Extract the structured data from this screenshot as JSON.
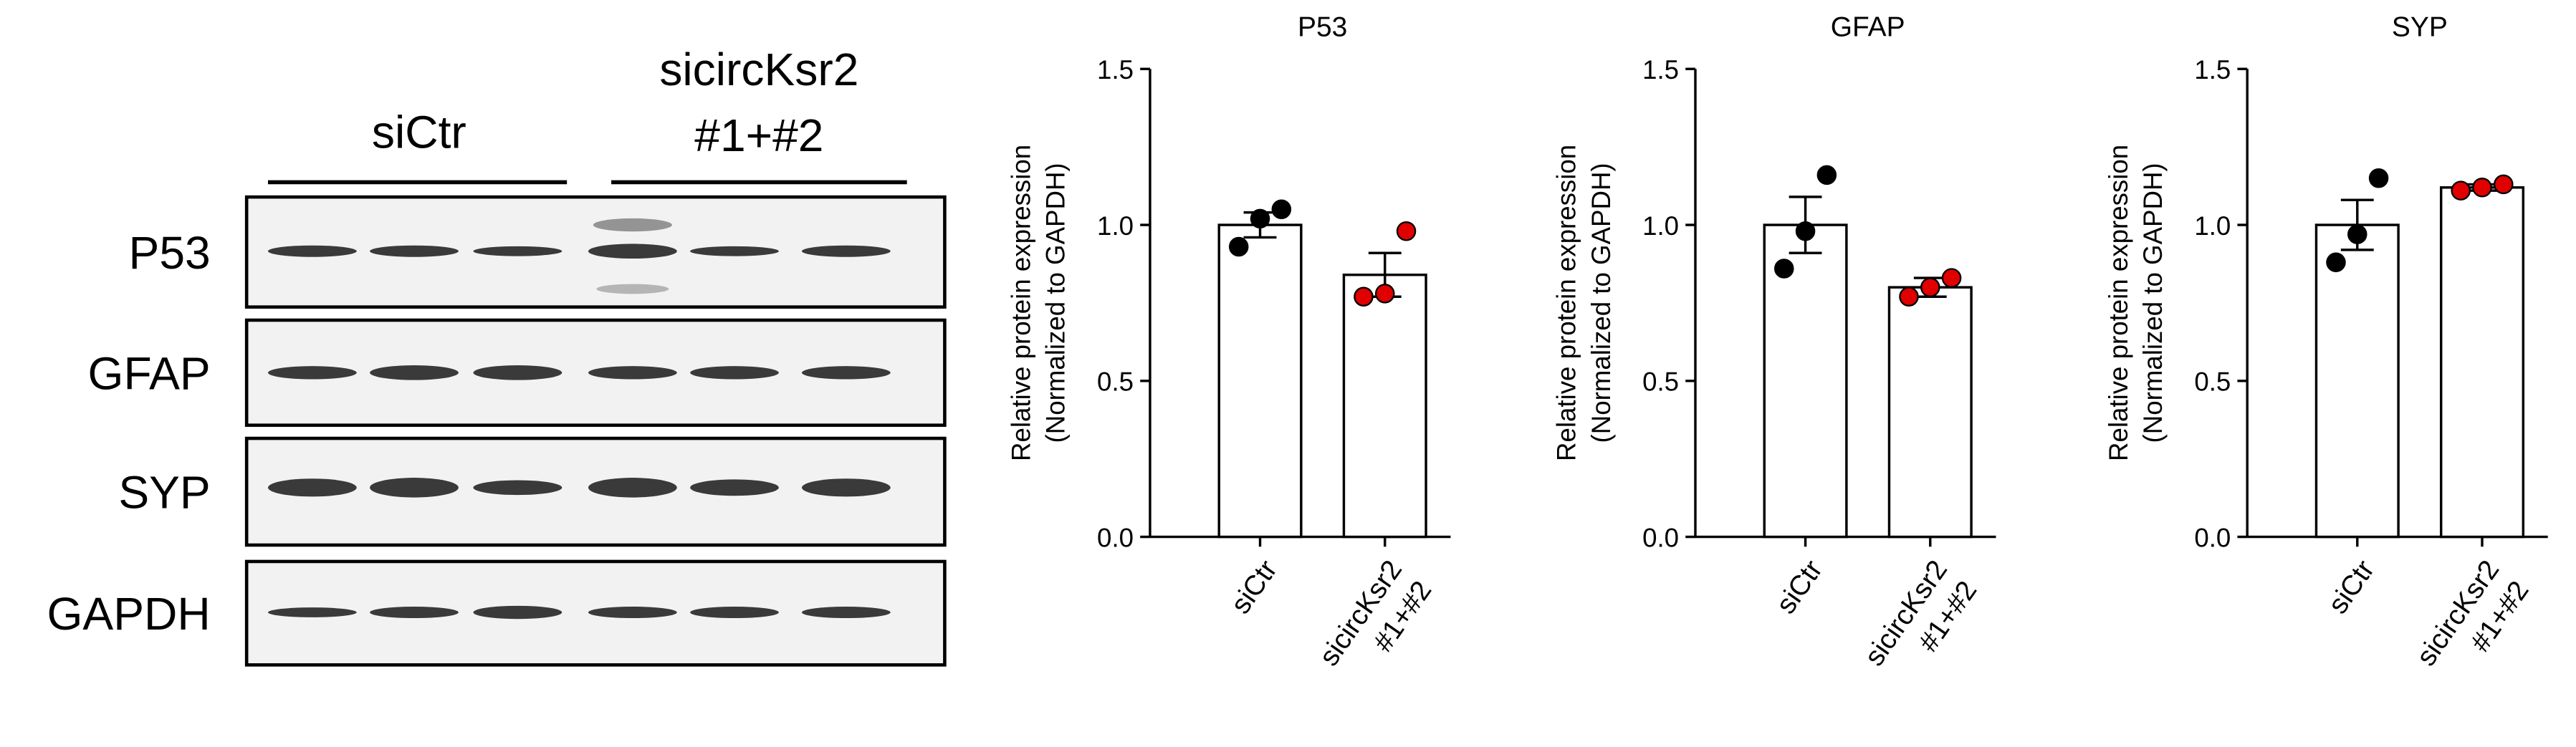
{
  "blot": {
    "group_labels": [
      "siCtr",
      [
        "sicircKsr2",
        "#1+#2"
      ]
    ],
    "rows": [
      "P53",
      "GFAP",
      "SYP",
      "GAPDH"
    ]
  },
  "chart_data": [
    {
      "type": "bar",
      "title": "P53",
      "ylabel": [
        "Relative protein expression",
        "(Normalized to GAPDH)"
      ],
      "categories": [
        "siCtr",
        [
          "sicircKsr2",
          "#1+#2"
        ]
      ],
      "values": [
        1.0,
        0.84
      ],
      "errors": [
        0.04,
        0.07
      ],
      "points": [
        [
          0.93,
          1.02,
          1.05
        ],
        [
          0.77,
          0.78,
          0.98
        ]
      ],
      "bar_color": "#ffffff",
      "point_colors": [
        "#000000",
        "#e00000"
      ],
      "ylim": [
        0,
        1.5
      ],
      "yticks": [
        {
          "value": 0,
          "label": "0.0"
        },
        {
          "value": 0.5,
          "label": "0.5"
        },
        {
          "value": 1,
          "label": "1.0"
        },
        {
          "value": 1.5,
          "label": "1.5"
        }
      ]
    },
    {
      "type": "bar",
      "title": "GFAP",
      "ylabel": [
        "Relative protein expression",
        "(Normalized to GAPDH)"
      ],
      "categories": [
        "siCtr",
        [
          "sicircKsr2",
          "#1+#2"
        ]
      ],
      "values": [
        1.0,
        0.8
      ],
      "errors": [
        0.09,
        0.03
      ],
      "points": [
        [
          0.86,
          0.98,
          1.16
        ],
        [
          0.77,
          0.8,
          0.83
        ]
      ],
      "bar_color": "#ffffff",
      "point_colors": [
        "#000000",
        "#e00000"
      ],
      "ylim": [
        0,
        1.5
      ],
      "yticks": [
        {
          "value": 0,
          "label": "0.0"
        },
        {
          "value": 0.5,
          "label": "0.5"
        },
        {
          "value": 1,
          "label": "1.0"
        },
        {
          "value": 1.5,
          "label": "1.5"
        }
      ]
    },
    {
      "type": "bar",
      "title": "SYP",
      "ylabel": [
        "Relative protein expression",
        "(Normalized to GAPDH)"
      ],
      "categories": [
        "siCtr",
        [
          "sicircKsr2",
          "#1+#2"
        ]
      ],
      "values": [
        1.0,
        1.12
      ],
      "errors": [
        0.08,
        0.01
      ],
      "points": [
        [
          0.88,
          0.97,
          1.15
        ],
        [
          1.11,
          1.12,
          1.13
        ]
      ],
      "bar_color": "#ffffff",
      "point_colors": [
        "#000000",
        "#e00000"
      ],
      "ylim": [
        0,
        1.5
      ],
      "yticks": [
        {
          "value": 0,
          "label": "0.0"
        },
        {
          "value": 0.5,
          "label": "0.5"
        },
        {
          "value": 1,
          "label": "1.0"
        },
        {
          "value": 1.5,
          "label": "1.5"
        }
      ]
    }
  ]
}
